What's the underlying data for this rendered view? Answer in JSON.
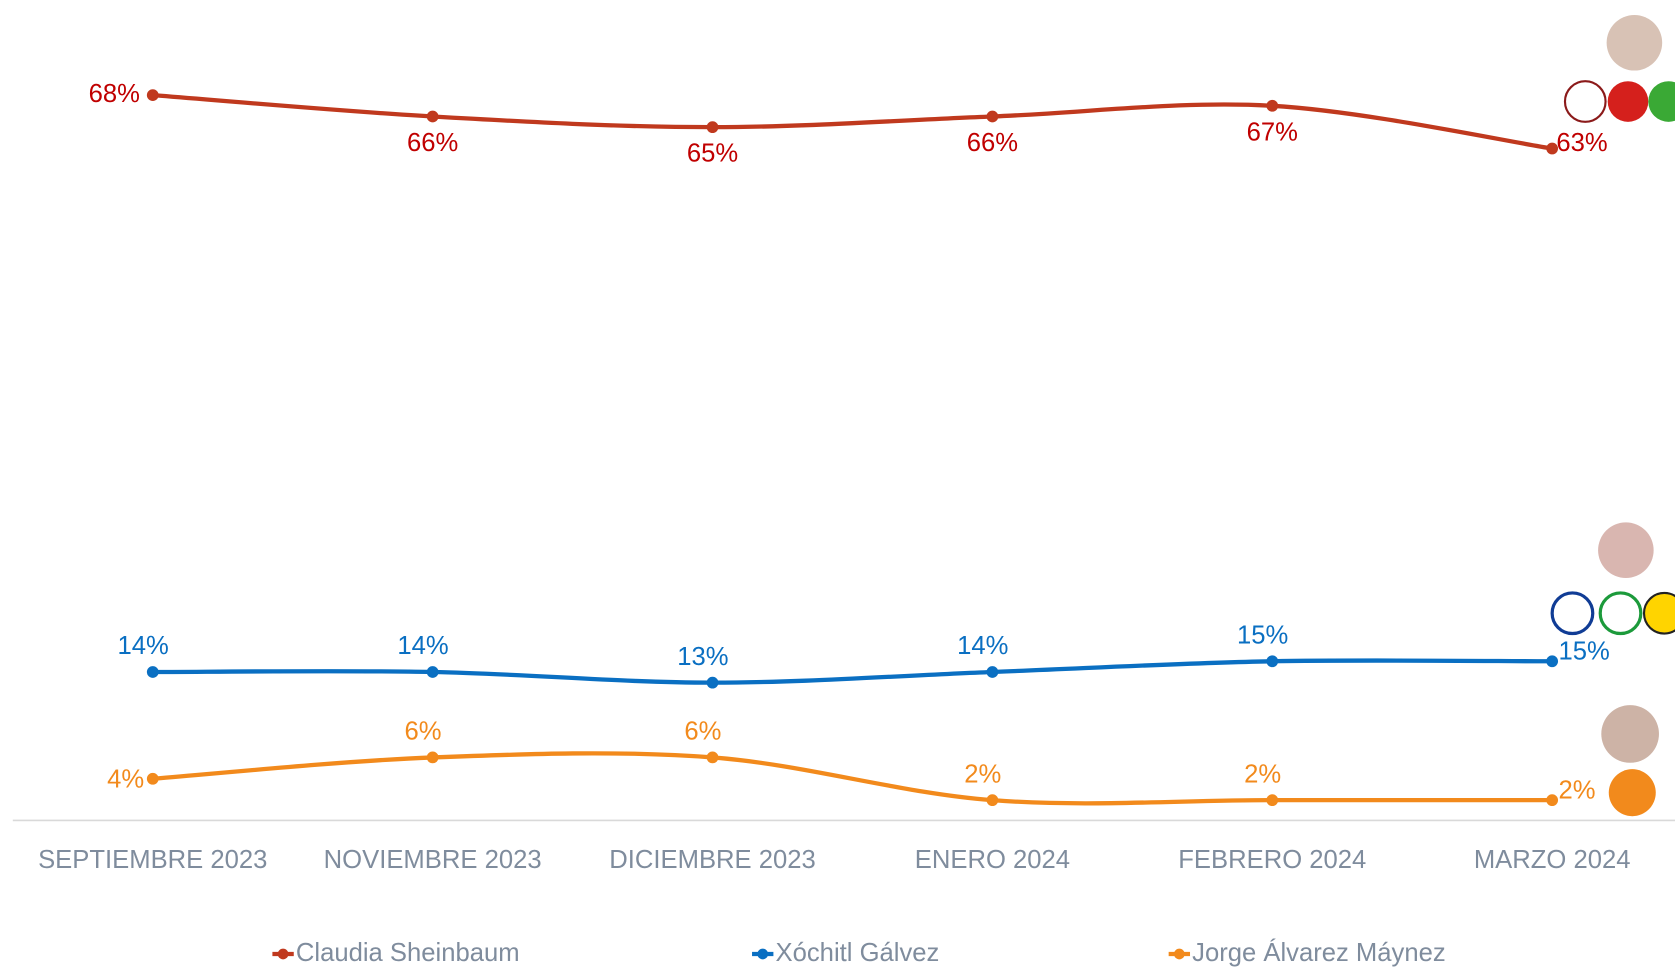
{
  "chart_data": {
    "type": "line",
    "categories": [
      "SEPTIEMBRE 2023",
      "NOVIEMBRE 2023",
      "DICIEMBRE 2023",
      "ENERO 2024",
      "FEBRERO 2024",
      "MARZO 2024"
    ],
    "series": [
      {
        "name": "Claudia Sheinbaum",
        "color": "#c0391e",
        "label_color": "#c00000",
        "values": [
          68,
          66,
          65,
          66,
          67,
          63
        ],
        "value_labels": [
          "68%",
          "66%",
          "65%",
          "66%",
          "67%",
          "63%"
        ]
      },
      {
        "name": "Xóchitl Gálvez",
        "color": "#0a6fc2",
        "label_color": "#0a6fc2",
        "values": [
          14,
          14,
          13,
          14,
          15,
          15
        ],
        "value_labels": [
          "14%",
          "14%",
          "13%",
          "14%",
          "15%",
          "15%"
        ]
      },
      {
        "name": "Jorge Álvarez Máynez",
        "color": "#f28a1c",
        "label_color": "#f28a1c",
        "values": [
          4,
          6,
          6,
          2,
          2,
          2
        ],
        "value_labels": [
          "4%",
          "6%",
          "6%",
          "2%",
          "2%",
          "2%"
        ]
      }
    ]
  }
}
